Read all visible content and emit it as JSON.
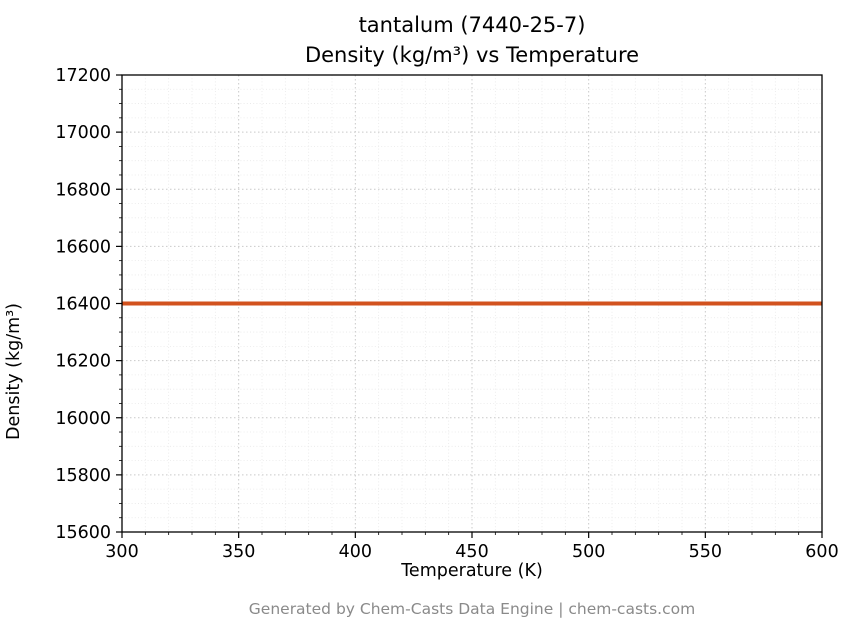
{
  "chart_data": {
    "type": "line",
    "title_line1": "tantalum (7440-25-7)",
    "title_line2": "Density (kg/m³) vs Temperature",
    "xlabel": "Temperature (K)",
    "ylabel": "Density (kg/m³)",
    "xlim": [
      300,
      600
    ],
    "ylim": [
      15600,
      17200
    ],
    "x_ticks": [
      300,
      350,
      400,
      450,
      500,
      550,
      600
    ],
    "y_ticks": [
      15600,
      15800,
      16000,
      16200,
      16400,
      16600,
      16800,
      17000,
      17200
    ],
    "x_minor_step": 10,
    "y_minor_step": 50,
    "grid": true,
    "legend": false,
    "series": [
      {
        "name": "Density",
        "color": "#d2521e",
        "line_width": 4,
        "x": [
          300,
          350,
          400,
          450,
          500,
          550,
          600
        ],
        "values": [
          16400,
          16400,
          16400,
          16400,
          16400,
          16400,
          16400
        ]
      }
    ],
    "colors": {
      "major_grid": "#c9c9c9",
      "minor_grid": "#e8e8e8",
      "axis": "#000000",
      "tick_label": "#000000"
    }
  },
  "footer": {
    "text": "Generated by Chem-Casts Data Engine | chem-casts.com"
  }
}
